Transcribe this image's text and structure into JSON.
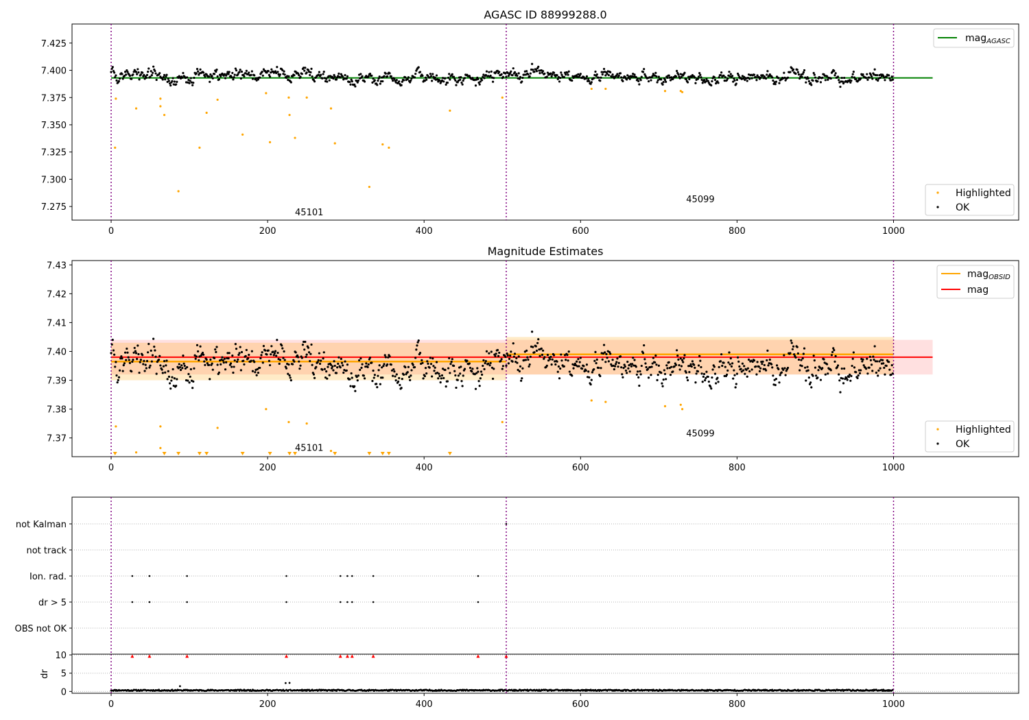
{
  "chart_data": [
    {
      "type": "scatter",
      "title": "AGASC ID 88999288.0",
      "xlim": [
        -50,
        1160
      ],
      "ylim": [
        7.2625,
        7.4425
      ],
      "xticks": [
        "0",
        "200",
        "400",
        "600",
        "800",
        "1000"
      ],
      "yticks": [
        "7.275",
        "7.300",
        "7.325",
        "7.350",
        "7.375",
        "7.400",
        "7.425"
      ],
      "obsid_boundaries": [
        0,
        505,
        1000
      ],
      "mag_agasc": 7.393,
      "legend_lines": [
        {
          "label": "mag",
          "sub": "AGASC",
          "color": "#008000"
        }
      ],
      "legend_points": [
        {
          "label": "Highlighted",
          "color": "#ffa500"
        },
        {
          "label": "OK",
          "color": "#000000"
        }
      ],
      "annotations": [
        {
          "text": "45101",
          "x": 235,
          "y": 7.267
        },
        {
          "text": "45099",
          "x": 735,
          "y": 7.279
        }
      ],
      "ok_series": {
        "n": 1000,
        "mean": 7.3945,
        "spread": 0.0055,
        "seed": 7
      },
      "highlighted": [
        {
          "x": 5,
          "y": 7.329
        },
        {
          "x": 6,
          "y": 7.374
        },
        {
          "x": 32,
          "y": 7.365
        },
        {
          "x": 63,
          "y": 7.367
        },
        {
          "x": 63,
          "y": 7.374
        },
        {
          "x": 68,
          "y": 7.359
        },
        {
          "x": 86,
          "y": 7.289
        },
        {
          "x": 113,
          "y": 7.329
        },
        {
          "x": 122,
          "y": 7.361
        },
        {
          "x": 136,
          "y": 7.373
        },
        {
          "x": 168,
          "y": 7.341
        },
        {
          "x": 198,
          "y": 7.379
        },
        {
          "x": 203,
          "y": 7.334
        },
        {
          "x": 227,
          "y": 7.375
        },
        {
          "x": 228,
          "y": 7.359
        },
        {
          "x": 235,
          "y": 7.338
        },
        {
          "x": 250,
          "y": 7.375
        },
        {
          "x": 281,
          "y": 7.365
        },
        {
          "x": 286,
          "y": 7.333
        },
        {
          "x": 330,
          "y": 7.293
        },
        {
          "x": 347,
          "y": 7.332
        },
        {
          "x": 355,
          "y": 7.329
        },
        {
          "x": 433,
          "y": 7.363
        },
        {
          "x": 500,
          "y": 7.375
        },
        {
          "x": 614,
          "y": 7.383
        },
        {
          "x": 632,
          "y": 7.383
        },
        {
          "x": 708,
          "y": 7.381
        },
        {
          "x": 728,
          "y": 7.381
        },
        {
          "x": 730,
          "y": 7.38
        }
      ]
    },
    {
      "type": "scatter",
      "title": "Magnitude Estimates",
      "xlim": [
        -50,
        1160
      ],
      "ylim": [
        7.3635,
        7.4315
      ],
      "xticks": [
        "0",
        "200",
        "400",
        "600",
        "800",
        "1000"
      ],
      "yticks": [
        "7.37",
        "7.38",
        "7.39",
        "7.40",
        "7.41",
        "7.42",
        "7.43"
      ],
      "obsid_boundaries": [
        0,
        505,
        1000
      ],
      "mag": {
        "value": 7.398,
        "band": [
          7.392,
          7.404
        ],
        "x": [
          0,
          1050
        ],
        "color": "#ff0000"
      },
      "mag_obsid": [
        {
          "x": [
            0,
            505
          ],
          "value": 7.3965,
          "band": [
            7.39,
            7.403
          ]
        },
        {
          "x": [
            505,
            1000
          ],
          "value": 7.399,
          "band": [
            7.392,
            7.405
          ]
        }
      ],
      "legend_lines": [
        {
          "label": "mag",
          "sub": "OBSID",
          "color": "#ffa500"
        },
        {
          "label": "mag",
          "sub": "",
          "color": "#ff0000"
        }
      ],
      "legend_points": [
        {
          "label": "Highlighted",
          "color": "#ffa500"
        },
        {
          "label": "OK",
          "color": "#000000"
        }
      ],
      "annotations": [
        {
          "text": "45101",
          "x": 235,
          "y": 7.3655
        },
        {
          "text": "45099",
          "x": 735,
          "y": 7.3705
        }
      ],
      "ok_series": {
        "n": 1000,
        "mean": 7.3955,
        "spread": 0.0055,
        "seed": 7
      },
      "highlighted": [
        {
          "x": 6,
          "y": 7.374
        },
        {
          "x": 32,
          "y": 7.365
        },
        {
          "x": 63,
          "y": 7.374
        },
        {
          "x": 63,
          "y": 7.3665
        },
        {
          "x": 198,
          "y": 7.38
        },
        {
          "x": 227,
          "y": 7.3755
        },
        {
          "x": 250,
          "y": 7.375
        },
        {
          "x": 136,
          "y": 7.3735
        },
        {
          "x": 281,
          "y": 7.3655
        },
        {
          "x": 500,
          "y": 7.3755
        },
        {
          "x": 614,
          "y": 7.383
        },
        {
          "x": 632,
          "y": 7.3825
        },
        {
          "x": 708,
          "y": 7.381
        },
        {
          "x": 728,
          "y": 7.3815
        },
        {
          "x": 730,
          "y": 7.38
        }
      ],
      "below_range_x": [
        5,
        68,
        86,
        113,
        122,
        168,
        203,
        228,
        235,
        286,
        330,
        347,
        355,
        433
      ]
    },
    {
      "type": "scatter",
      "title": "",
      "xlim": [
        -50,
        1160
      ],
      "xticks": [
        "0",
        "200",
        "400",
        "600",
        "800",
        "1000"
      ],
      "obsid_boundaries": [
        0,
        505,
        1000
      ],
      "flag_rows": [
        "not Kalman",
        "not track",
        "Ion. rad.",
        "dr > 5",
        "OBS not OK"
      ],
      "flags": {
        "not Kalman": [
          505
        ],
        "not track": [],
        "Ion. rad.": [
          27,
          49,
          97,
          224,
          293,
          302,
          308,
          335,
          469
        ],
        "dr > 5": [
          27,
          49,
          97,
          224,
          293,
          302,
          308,
          335,
          469
        ],
        "OBS not OK": []
      },
      "dr_ylabel": "dr",
      "dr_yticks": [
        "0",
        "5",
        "10"
      ],
      "dr_ylim": [
        -0.5,
        10.2
      ],
      "dr_clipped_x": [
        27,
        49,
        97,
        224,
        293,
        302,
        308,
        335,
        469,
        505
      ],
      "dr_series": {
        "n": 1000,
        "typical": 0.3
      }
    }
  ]
}
